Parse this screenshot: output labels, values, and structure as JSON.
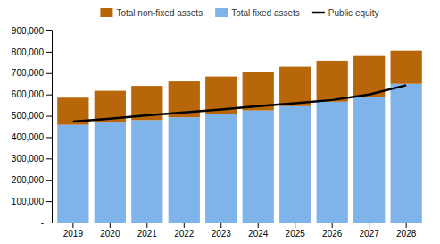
{
  "chart_data": {
    "type": "bar",
    "stacked": true,
    "grid": false,
    "legend": "top",
    "categories": [
      "2019",
      "2020",
      "2021",
      "2022",
      "2023",
      "2024",
      "2025",
      "2026",
      "2027",
      "2028"
    ],
    "series": [
      {
        "name": "Total fixed assets",
        "type": "bar",
        "color": "#7EB4EA",
        "values": [
          458000,
          468000,
          480000,
          493000,
          508000,
          525000,
          545000,
          566000,
          587000,
          650000
        ]
      },
      {
        "name": "Total non-fixed assets",
        "type": "bar",
        "color": "#B8660A",
        "values": [
          127000,
          149000,
          160000,
          168000,
          176000,
          181000,
          185000,
          192000,
          193000,
          155000
        ]
      },
      {
        "name": "Public equity",
        "type": "line",
        "color": "#000000",
        "values": [
          473000,
          487000,
          502000,
          516000,
          530000,
          545000,
          559000,
          574000,
          600000,
          643000
        ]
      }
    ],
    "ylim": [
      0,
      900000
    ],
    "yticks": [
      {
        "value": 0,
        "label": "-"
      },
      {
        "value": 100000,
        "label": "100,000"
      },
      {
        "value": 200000,
        "label": "200,000"
      },
      {
        "value": 300000,
        "label": "300,000"
      },
      {
        "value": 400000,
        "label": "400,000"
      },
      {
        "value": 500000,
        "label": "500,000"
      },
      {
        "value": 600000,
        "label": "600,000"
      },
      {
        "value": 700000,
        "label": "700,000"
      },
      {
        "value": 800000,
        "label": "800,000"
      },
      {
        "value": 900000,
        "label": "900,000"
      }
    ]
  }
}
